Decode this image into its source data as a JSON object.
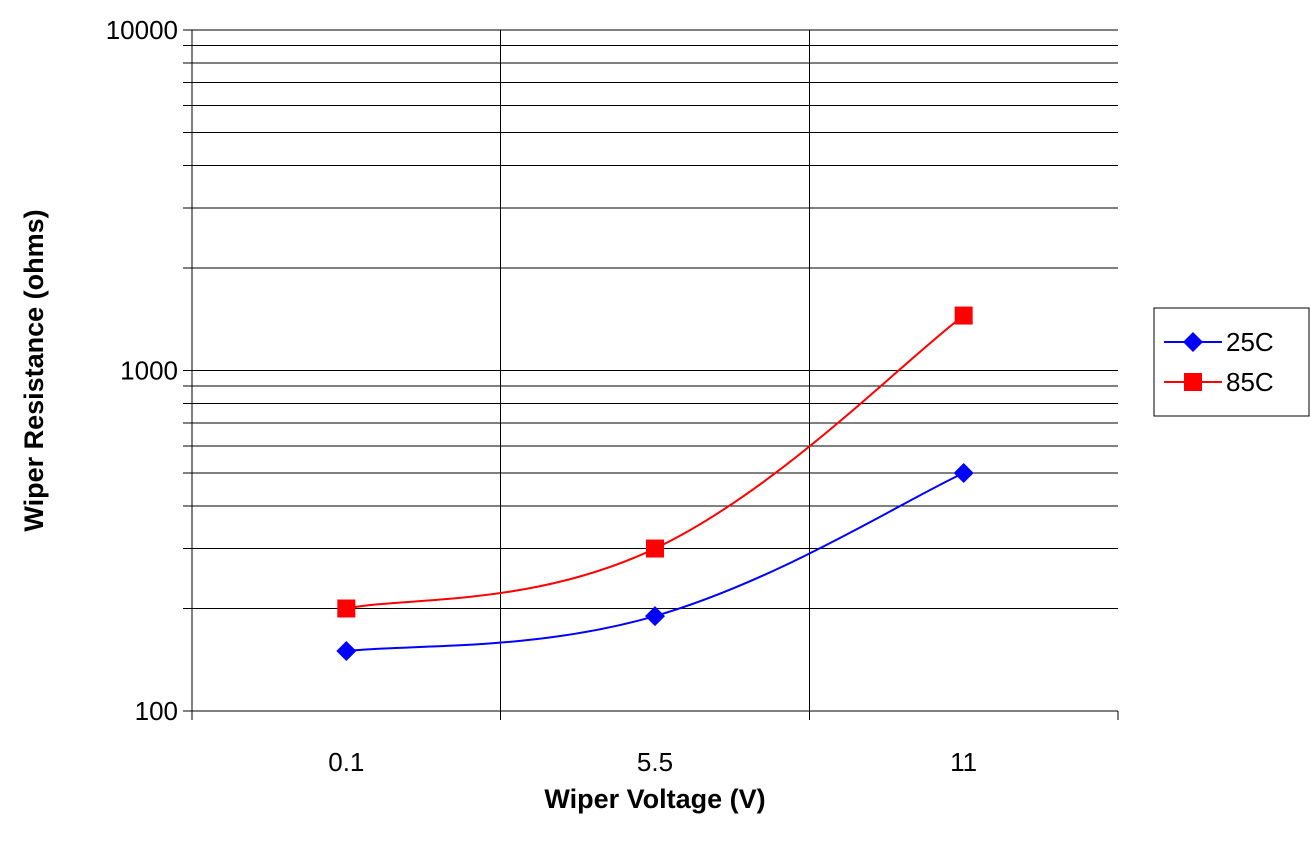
{
  "chart_data": {
    "type": "line",
    "title": "",
    "xlabel": "Wiper Voltage (V)",
    "ylabel": "Wiper Resistance (ohms)",
    "x_scale": "category",
    "y_scale": "log",
    "ylim": [
      100,
      10000
    ],
    "y_ticks": [
      100,
      1000,
      10000
    ],
    "y_tick_labels": [
      "100",
      "1000",
      "10000"
    ],
    "categories": [
      "0.1",
      "5.5",
      "11"
    ],
    "grid": true,
    "legend_position": "right",
    "series": [
      {
        "name": "25C",
        "color": "#0000ff",
        "marker": "diamond",
        "values": [
          150,
          190,
          500
        ]
      },
      {
        "name": "85C",
        "color": "#ff0000",
        "marker": "square",
        "values": [
          200,
          300,
          1450
        ]
      }
    ]
  }
}
